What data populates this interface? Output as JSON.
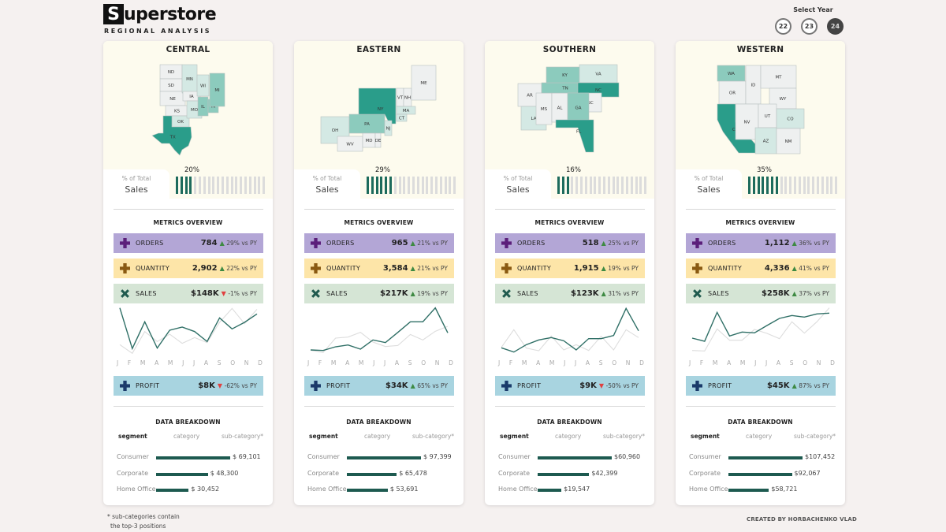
{
  "header": {
    "logo_first": "S",
    "logo_rest": "uperstore",
    "subtitle": "REGIONAL ANALYSIS"
  },
  "year_selector": {
    "label": "Select Year",
    "years": [
      "22",
      "23",
      "24"
    ],
    "selected": "24"
  },
  "labels": {
    "pct_total_top": "% of Total",
    "pct_total_bottom": "Sales",
    "metrics_title": "METRICS OVERVIEW",
    "breakdown_title": "DATA   BREAKDOWN",
    "tab_segment": "segment",
    "tab_category": "category",
    "tab_subcategory": "sub-category*",
    "months": [
      "J",
      "F",
      "M",
      "A",
      "M",
      "J",
      "J",
      "A",
      "S",
      "O",
      "N",
      "D"
    ],
    "metric_names": {
      "orders": "ORDERS",
      "quantity": "QUANTITY",
      "sales": "SALES",
      "profit": "PROFIT"
    }
  },
  "colors": {
    "orders_bg": "#b3a6d6",
    "quantity_bg": "#fde5a8",
    "sales_bg": "#d5e5d5",
    "profit_bg": "#a8d4e0",
    "accent": "#1d6b5c",
    "map_levels": [
      "#eef0f0",
      "#d4e9e4",
      "#8ccbbd",
      "#2a9d8a"
    ],
    "up": "#3e8a43",
    "down": "#e04040"
  },
  "regions": [
    {
      "name": "CENTRAL",
      "pct_total_sales": 20,
      "pct_label": "20%",
      "metrics": {
        "orders": {
          "value": "784",
          "dir": "up",
          "change": "29% vs PY"
        },
        "quantity": {
          "value": "2,902",
          "dir": "up",
          "change": "22% vs PY"
        },
        "sales": {
          "value": "$148K",
          "dir": "down",
          "change": "-1% vs PY"
        },
        "profit": {
          "value": "$8K",
          "dir": "down",
          "change": "-62% vs PY"
        }
      },
      "sales_trend": {
        "current": [
          175,
          20,
          122,
          22,
          90,
          102,
          85,
          47,
          137,
          95,
          120,
          152
        ],
        "previous_year": [
          35,
          2,
          85,
          47,
          75,
          40,
          62,
          43,
          120,
          173,
          115,
          170
        ]
      },
      "states": {
        "ND": 0,
        "SD": 0,
        "NE": 0,
        "KS": 0,
        "OK": 1,
        "TX": 3,
        "MN": 1,
        "IA": 0,
        "MO": 1,
        "WI": 1,
        "IL": 2,
        "IN": 2,
        "MI": 2
      },
      "segments": [
        {
          "label": "Consumer",
          "value": 69101,
          "text": "$ 69,101"
        },
        {
          "label": "Corporate",
          "value": 48300,
          "text": "$ 48,300"
        },
        {
          "label": "Home Office",
          "value": 30452,
          "text": "$ 30,452"
        }
      ]
    },
    {
      "name": "EASTERN",
      "pct_total_sales": 29,
      "pct_label": "29%",
      "metrics": {
        "orders": {
          "value": "965",
          "dir": "up",
          "change": "21% vs PY"
        },
        "quantity": {
          "value": "3,584",
          "dir": "up",
          "change": "21% vs PY"
        },
        "sales": {
          "value": "$217K",
          "dir": "up",
          "change": "19% vs PY"
        },
        "profit": {
          "value": "$34K",
          "dir": "up",
          "change": "65% vs PY"
        }
      },
      "sales_trend": {
        "current": [
          15,
          13,
          27,
          34,
          18,
          53,
          43,
          82,
          122,
          122,
          175,
          80
        ],
        "previous_year": [
          14,
          5,
          60,
          64,
          82,
          45,
          28,
          32,
          74,
          53,
          86,
          105
        ]
      },
      "states": {
        "OH": 1,
        "PA": 2,
        "NY": 3,
        "WV": 0,
        "MD": 0,
        "DE": 0,
        "NJ": 1,
        "VT": 0,
        "NH": 0,
        "ME": 0,
        "MA": 1,
        "CT": 1
      },
      "segments": [
        {
          "label": "Consumer",
          "value": 97399,
          "text": "$ 97,399"
        },
        {
          "label": "Corporate",
          "value": 65478,
          "text": "$ 65,478"
        },
        {
          "label": "Home Office",
          "value": 53691,
          "text": "$ 53,691"
        }
      ]
    },
    {
      "name": "SOUTHERN",
      "pct_total_sales": 16,
      "pct_label": "16%",
      "metrics": {
        "orders": {
          "value": "518",
          "dir": "up",
          "change": "25% vs PY"
        },
        "quantity": {
          "value": "1,915",
          "dir": "up",
          "change": "19% vs PY"
        },
        "sales": {
          "value": "$123K",
          "dir": "up",
          "change": "31% vs PY"
        },
        "profit": {
          "value": "$9K",
          "dir": "down",
          "change": "-50% vs PY"
        }
      },
      "sales_trend": {
        "current": [
          23,
          7,
          35,
          53,
          62,
          50,
          15,
          58,
          58,
          70,
          173,
          88
        ],
        "previous_year": [
          25,
          92,
          22,
          12,
          68,
          15,
          35,
          13,
          67,
          15,
          92,
          62
        ]
      },
      "states": {
        "AR": 0,
        "LA": 1,
        "MS": 0,
        "AL": 0,
        "TN": 2,
        "KY": 2,
        "VA": 1,
        "NC": 3,
        "SC": 0,
        "GA": 2,
        "FL": 3
      },
      "segments": [
        {
          "label": "Consumer",
          "value": 60960,
          "text": "$60,960"
        },
        {
          "label": "Corporate",
          "value": 42399,
          "text": "$42,399"
        },
        {
          "label": "Home Office",
          "value": 19547,
          "text": "$19,547"
        }
      ]
    },
    {
      "name": "WESTERN",
      "pct_total_sales": 35,
      "pct_label": "35%",
      "metrics": {
        "orders": {
          "value": "1,112",
          "dir": "up",
          "change": "36% vs PY"
        },
        "quantity": {
          "value": "4,336",
          "dir": "up",
          "change": "41% vs PY"
        },
        "sales": {
          "value": "$258K",
          "dir": "up",
          "change": "37% vs PY"
        },
        "profit": {
          "value": "$45K",
          "dir": "up",
          "change": "87% vs PY"
        }
      },
      "sales_trend": {
        "current": [
          60,
          48,
          158,
          68,
          83,
          80,
          108,
          135,
          146,
          140,
          152,
          155
        ],
        "previous_year": [
          13,
          11,
          95,
          52,
          52,
          93,
          78,
          58,
          122,
          79,
          122,
          175
        ]
      },
      "states": {
        "WA": 2,
        "OR": 0,
        "ID": 0,
        "MT": 0,
        "WY": 0,
        "CA": 3,
        "NV": 0,
        "UT": 0,
        "CO": 1,
        "AZ": 1,
        "NM": 0
      },
      "segments": [
        {
          "label": "Consumer",
          "value": 107452,
          "text": "$107,452"
        },
        {
          "label": "Corporate",
          "value": 92067,
          "text": "$92,067"
        },
        {
          "label": "Home Office",
          "value": 58721,
          "text": "$58,721"
        }
      ]
    }
  ],
  "footnote": [
    "* sub-categories contain",
    "the top-3 positions"
  ],
  "credit": "CREATED BY HORBACHENKO VLAD"
}
